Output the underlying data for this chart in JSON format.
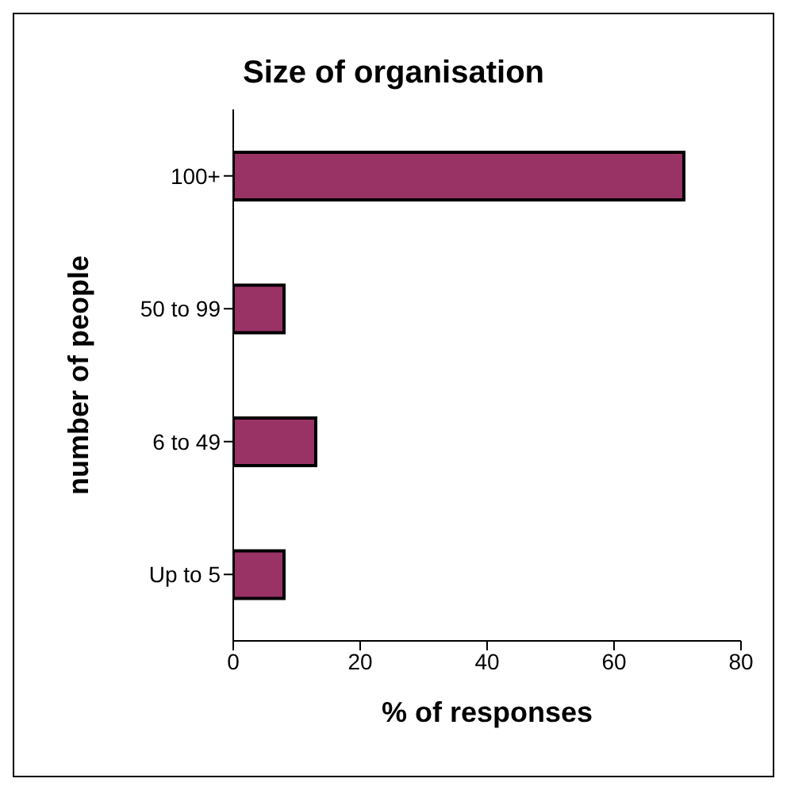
{
  "chart_data": {
    "type": "bar",
    "orientation": "horizontal",
    "title": "Size of organisation",
    "xlabel": "% of responses",
    "ylabel": "number of people",
    "categories": [
      "100+",
      "50 to 99",
      "6 to 49",
      "Up to 5"
    ],
    "values": [
      71,
      8,
      13,
      8
    ],
    "color": "#993366",
    "xlim": [
      0,
      80
    ],
    "xticks": [
      0,
      20,
      40,
      60,
      80
    ]
  }
}
